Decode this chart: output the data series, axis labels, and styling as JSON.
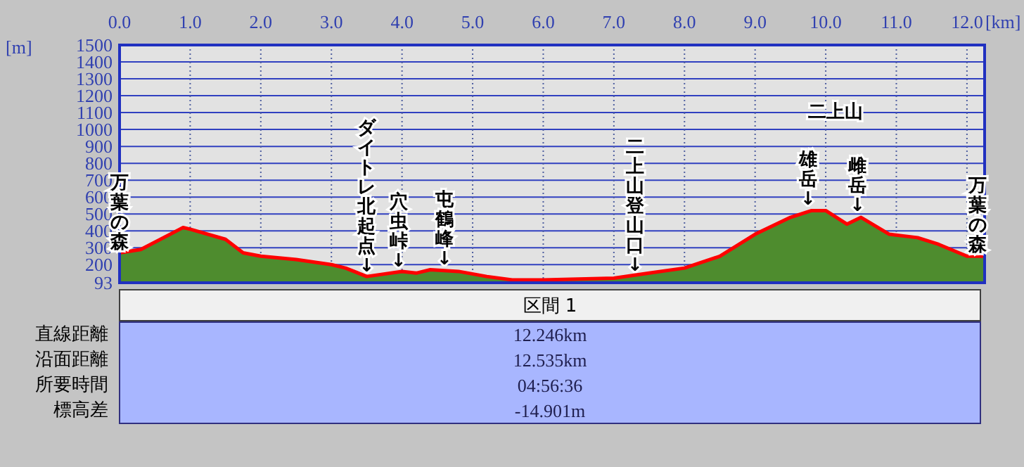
{
  "chart_data": {
    "type": "area",
    "xlabel": "[km]",
    "ylabel": "[m]",
    "x": [
      0,
      0.3,
      0.9,
      1.0,
      1.5,
      1.75,
      2.0,
      2.5,
      3.0,
      3.2,
      3.5,
      4.0,
      4.2,
      4.4,
      4.8,
      5.2,
      5.56,
      6.0,
      7.0,
      7.5,
      8.0,
      8.5,
      9.0,
      9.5,
      9.8,
      10.0,
      10.3,
      10.5,
      10.9,
      11.3,
      11.6,
      12.0,
      12.25
    ],
    "series": [
      {
        "color": "#4e8c2e",
        "values": [
          270,
          290,
          420,
          410,
          350,
          270,
          250,
          230,
          200,
          180,
          130,
          160,
          150,
          170,
          160,
          130,
          110,
          110,
          120,
          150,
          180,
          250,
          380,
          480,
          520,
          520,
          440,
          480,
          380,
          360,
          320,
          250,
          250
        ]
      },
      {
        "type": "line",
        "color": "#ff0000",
        "values": [
          270,
          290,
          420,
          410,
          350,
          270,
          250,
          230,
          200,
          180,
          130,
          160,
          150,
          170,
          160,
          130,
          110,
          110,
          120,
          150,
          180,
          250,
          380,
          480,
          520,
          520,
          440,
          480,
          380,
          360,
          320,
          250,
          250
        ]
      }
    ],
    "xlim": [
      0,
      12.25
    ],
    "ylim": [
      93,
      1500
    ],
    "xticks": [
      {
        "value": 0,
        "label": "0.0"
      },
      {
        "value": 1,
        "label": "1.0"
      },
      {
        "value": 2,
        "label": "2.0"
      },
      {
        "value": 3,
        "label": "3.0"
      },
      {
        "value": 4,
        "label": "4.0"
      },
      {
        "value": 5,
        "label": "5.0"
      },
      {
        "value": 6,
        "label": "6.0"
      },
      {
        "value": 7,
        "label": "7.0"
      },
      {
        "value": 8,
        "label": "8.0"
      },
      {
        "value": 9,
        "label": "9.0"
      },
      {
        "value": 10,
        "label": "10.0"
      },
      {
        "value": 11,
        "label": "11.0"
      },
      {
        "value": 12,
        "label": "12.0"
      }
    ],
    "yticks": [
      93,
      200,
      300,
      400,
      500,
      600,
      700,
      800,
      900,
      1000,
      1100,
      1200,
      1300,
      1400,
      1500
    ],
    "grid": true,
    "annotations": [
      {
        "text": "万葉の森",
        "x": 0,
        "y": 267
      },
      {
        "text": "ダイトレ北起点↓",
        "x": 3.5,
        "y": 128
      },
      {
        "text": "穴虫峠↓",
        "x": 3.95,
        "y": 156
      },
      {
        "text": "屯鶴峰↓",
        "x": 4.6,
        "y": 169
      },
      {
        "text": "二上山登山口↓",
        "x": 7.3,
        "y": 130
      },
      "二上山",
      {
        "text": "雄岳↓",
        "x": 9.75,
        "y": 522
      },
      {
        "text": "雌岳↓",
        "x": 10.45,
        "y": 483
      },
      {
        "text": "万葉の森",
        "x": 12.15,
        "y": 252
      },
      "区間 1",
      "直線距離",
      "12.246km",
      "沿面距離",
      "12.535km",
      "所要時間",
      "04:56:36",
      "標高差",
      "-14.901m"
    ]
  }
}
